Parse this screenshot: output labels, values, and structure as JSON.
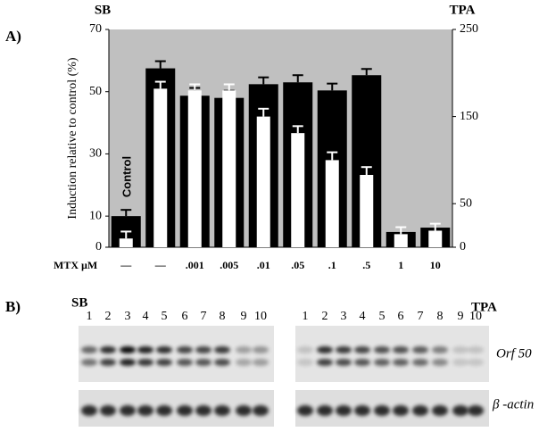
{
  "chart_data": {
    "type": "bar",
    "panel_label": "A)",
    "y_label": "Induction relative to control (%)",
    "annotation": "Control",
    "x_label": "MTX µM",
    "categories": [
      "—",
      "—",
      ".001",
      ".005",
      ".01",
      ".05",
      ".1",
      ".5",
      "1",
      "10"
    ],
    "series": [
      {
        "name": "SB",
        "color": "#000000",
        "values": [
          10,
          57.5,
          48.7,
          48,
          52.4,
          53,
          50.4,
          55.3,
          4.9,
          6.3
        ],
        "errors": [
          2,
          2.3,
          2.5,
          2.3,
          2.2,
          2.3,
          2.2,
          2,
          0,
          0
        ]
      },
      {
        "name": "TPA",
        "color": "#ffffff",
        "axis": "y2",
        "values": [
          10,
          182,
          180,
          180,
          150,
          131,
          100,
          83,
          15,
          19
        ],
        "errors": [
          8,
          8,
          7,
          7,
          9,
          8,
          9,
          9,
          8,
          8
        ]
      }
    ],
    "ylim": [
      0,
      70
    ],
    "yticks": [
      0,
      10,
      30,
      50,
      70
    ],
    "y2lim": [
      0,
      250
    ],
    "y2ticks": [
      0,
      50,
      150,
      250
    ],
    "background": "#c0c0c0"
  },
  "blot": {
    "panel_label": "B)",
    "left_title": "SB",
    "right_title": "TPA",
    "lanes": [
      "1",
      "2",
      "3",
      "4",
      "5",
      "6",
      "7",
      "8",
      "9",
      "10"
    ],
    "bands": [
      "Orf 50",
      "β -actin"
    ]
  }
}
